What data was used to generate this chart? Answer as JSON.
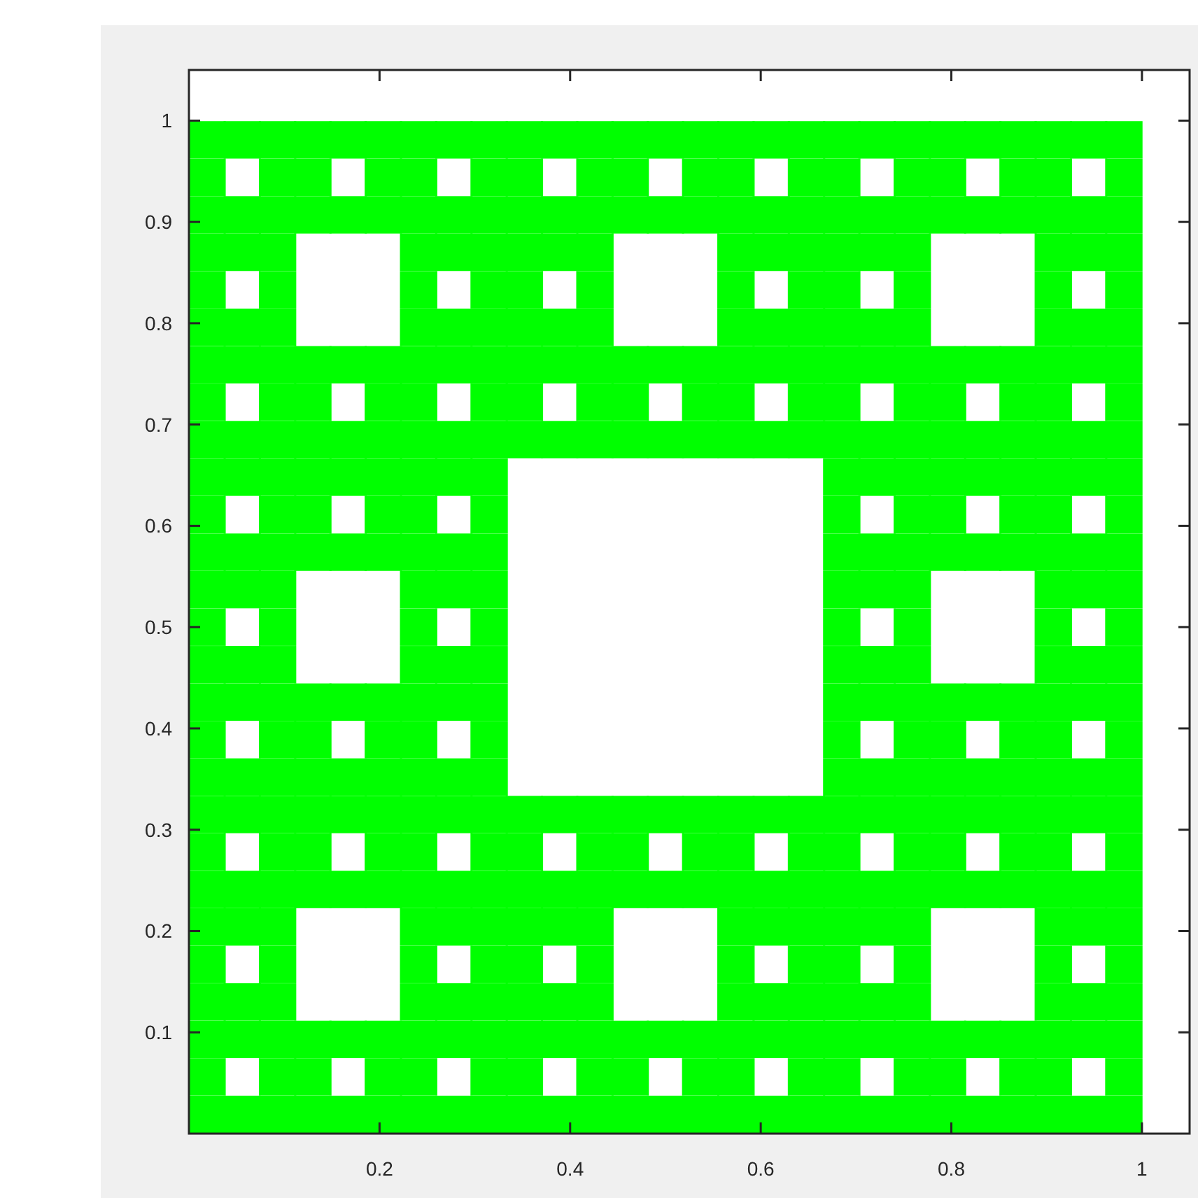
{
  "chart_data": {
    "type": "scatter",
    "marker": "square",
    "xlim": [
      0,
      1.05
    ],
    "ylim": [
      0,
      1.05
    ],
    "xticks": [
      0.2,
      0.4,
      0.6,
      0.8,
      1
    ],
    "yticks": [
      0.1,
      0.2,
      0.3,
      0.4,
      0.5,
      0.6,
      0.7,
      0.8,
      0.9,
      1
    ],
    "series": [
      {
        "color": "#00ff00",
        "x": [
          0.019,
          0.019,
          0.019,
          0.019,
          0.019,
          0.019,
          0.019,
          0.019,
          0.019,
          0.019,
          0.019,
          0.019,
          0.019,
          0.019,
          0.019,
          0.019,
          0.019,
          0.019,
          0.019,
          0.019,
          0.019,
          0.019,
          0.019,
          0.019,
          0.019,
          0.019,
          0.019
        ],
        "values": [
          0.019,
          0.056,
          0.093,
          0.13,
          0.167,
          0.204,
          0.241,
          0.278,
          0.315,
          0.352,
          0.389,
          0.426,
          0.463,
          0.5,
          0.537,
          0.574,
          0.611,
          0.648,
          0.685,
          0.722,
          0.759,
          0.796,
          0.833,
          0.87,
          0.907,
          0.944,
          0.981
        ]
      },
      {
        "color": "#00ff00",
        "x": [
          0.056,
          0.056,
          0.056,
          0.056,
          0.056,
          0.056,
          0.056,
          0.056,
          0.056,
          0.056,
          0.056,
          0.056,
          0.056,
          0.056,
          0.056,
          0.056,
          0.056,
          0.056
        ],
        "values": [
          0.019,
          0.093,
          0.13,
          0.204,
          0.241,
          0.315,
          0.352,
          0.426,
          0.463,
          0.537,
          0.574,
          0.648,
          0.685,
          0.759,
          0.796,
          0.87,
          0.907,
          0.981
        ]
      },
      {
        "color": "#00ff00",
        "x": [
          0.093,
          0.093,
          0.093,
          0.093,
          0.093,
          0.093,
          0.093,
          0.093,
          0.093,
          0.093,
          0.093,
          0.093,
          0.093,
          0.093,
          0.093,
          0.093,
          0.093,
          0.093,
          0.093,
          0.093,
          0.093,
          0.093,
          0.093,
          0.093,
          0.093,
          0.093,
          0.093
        ],
        "values": [
          0.019,
          0.056,
          0.093,
          0.13,
          0.167,
          0.204,
          0.241,
          0.278,
          0.315,
          0.352,
          0.389,
          0.426,
          0.463,
          0.5,
          0.537,
          0.574,
          0.611,
          0.648,
          0.685,
          0.722,
          0.759,
          0.796,
          0.833,
          0.87,
          0.907,
          0.944,
          0.981
        ]
      },
      {
        "color": "#00ff00",
        "x": [
          0.13,
          0.13,
          0.13,
          0.13,
          0.13,
          0.13,
          0.13,
          0.13,
          0.13,
          0.13,
          0.13,
          0.13,
          0.13,
          0.13,
          0.13,
          0.13,
          0.13,
          0.13
        ],
        "values": [
          0.019,
          0.056,
          0.093,
          0.241,
          0.278,
          0.315,
          0.352,
          0.389,
          0.426,
          0.574,
          0.611,
          0.648,
          0.685,
          0.722,
          0.759,
          0.907,
          0.944,
          0.981
        ]
      },
      {
        "color": "#00ff00",
        "x": [
          0.167,
          0.167,
          0.167,
          0.167,
          0.167,
          0.167,
          0.167,
          0.167,
          0.167,
          0.167,
          0.167,
          0.167
        ],
        "values": [
          0.019,
          0.093,
          0.241,
          0.315,
          0.352,
          0.426,
          0.574,
          0.648,
          0.685,
          0.759,
          0.907,
          0.981
        ]
      },
      {
        "color": "#00ff00",
        "x": [
          0.204,
          0.204,
          0.204,
          0.204,
          0.204,
          0.204,
          0.204,
          0.204,
          0.204,
          0.204,
          0.204,
          0.204,
          0.204,
          0.204,
          0.204,
          0.204,
          0.204,
          0.204
        ],
        "values": [
          0.019,
          0.056,
          0.093,
          0.241,
          0.278,
          0.315,
          0.352,
          0.389,
          0.426,
          0.574,
          0.611,
          0.648,
          0.685,
          0.722,
          0.759,
          0.907,
          0.944,
          0.981
        ]
      },
      {
        "color": "#00ff00",
        "x": [
          0.241,
          0.241,
          0.241,
          0.241,
          0.241,
          0.241,
          0.241,
          0.241,
          0.241,
          0.241,
          0.241,
          0.241,
          0.241,
          0.241,
          0.241,
          0.241,
          0.241,
          0.241,
          0.241,
          0.241,
          0.241,
          0.241,
          0.241,
          0.241,
          0.241,
          0.241,
          0.241
        ],
        "values": [
          0.019,
          0.056,
          0.093,
          0.13,
          0.167,
          0.204,
          0.241,
          0.278,
          0.315,
          0.352,
          0.389,
          0.426,
          0.463,
          0.5,
          0.537,
          0.574,
          0.611,
          0.648,
          0.685,
          0.722,
          0.759,
          0.796,
          0.833,
          0.87,
          0.907,
          0.944,
          0.981
        ]
      },
      {
        "color": "#00ff00",
        "x": [
          0.278,
          0.278,
          0.278,
          0.278,
          0.278,
          0.278,
          0.278,
          0.278,
          0.278,
          0.278,
          0.278,
          0.278,
          0.278,
          0.278,
          0.278,
          0.278,
          0.278,
          0.278
        ],
        "values": [
          0.019,
          0.093,
          0.13,
          0.204,
          0.241,
          0.315,
          0.352,
          0.426,
          0.463,
          0.537,
          0.574,
          0.648,
          0.685,
          0.759,
          0.796,
          0.87,
          0.907,
          0.981
        ]
      },
      {
        "color": "#00ff00",
        "x": [
          0.315,
          0.315,
          0.315,
          0.315,
          0.315,
          0.315,
          0.315,
          0.315,
          0.315,
          0.315,
          0.315,
          0.315,
          0.315,
          0.315,
          0.315,
          0.315,
          0.315,
          0.315,
          0.315,
          0.315,
          0.315,
          0.315,
          0.315,
          0.315,
          0.315,
          0.315,
          0.315
        ],
        "values": [
          0.019,
          0.056,
          0.093,
          0.13,
          0.167,
          0.204,
          0.241,
          0.278,
          0.315,
          0.352,
          0.389,
          0.426,
          0.463,
          0.5,
          0.537,
          0.574,
          0.611,
          0.648,
          0.685,
          0.722,
          0.759,
          0.796,
          0.833,
          0.87,
          0.907,
          0.944,
          0.981
        ]
      },
      {
        "color": "#00ff00",
        "x": [
          0.352,
          0.352,
          0.352,
          0.352,
          0.352,
          0.352,
          0.352,
          0.352,
          0.352,
          0.352,
          0.352,
          0.352,
          0.352,
          0.352,
          0.352,
          0.352,
          0.352,
          0.352
        ],
        "values": [
          0.019,
          0.056,
          0.093,
          0.13,
          0.167,
          0.204,
          0.241,
          0.278,
          0.315,
          0.685,
          0.722,
          0.759,
          0.796,
          0.833,
          0.87,
          0.907,
          0.944,
          0.981
        ]
      },
      {
        "color": "#00ff00",
        "x": [
          0.389,
          0.389,
          0.389,
          0.389,
          0.389,
          0.389,
          0.389,
          0.389,
          0.389,
          0.389,
          0.389,
          0.389
        ],
        "values": [
          0.019,
          0.093,
          0.13,
          0.204,
          0.241,
          0.315,
          0.685,
          0.759,
          0.796,
          0.87,
          0.907,
          0.981
        ]
      },
      {
        "color": "#00ff00",
        "x": [
          0.426,
          0.426,
          0.426,
          0.426,
          0.426,
          0.426,
          0.426,
          0.426,
          0.426,
          0.426,
          0.426,
          0.426,
          0.426,
          0.426,
          0.426,
          0.426,
          0.426,
          0.426
        ],
        "values": [
          0.019,
          0.056,
          0.093,
          0.13,
          0.167,
          0.204,
          0.241,
          0.278,
          0.315,
          0.685,
          0.722,
          0.759,
          0.796,
          0.833,
          0.87,
          0.907,
          0.944,
          0.981
        ]
      },
      {
        "color": "#00ff00",
        "x": [
          0.463,
          0.463,
          0.463,
          0.463,
          0.463,
          0.463,
          0.463,
          0.463,
          0.463,
          0.463,
          0.463,
          0.463
        ],
        "values": [
          0.019,
          0.056,
          0.093,
          0.241,
          0.278,
          0.315,
          0.685,
          0.722,
          0.759,
          0.907,
          0.944,
          0.981
        ]
      },
      {
        "color": "#00ff00",
        "x": [
          0.5,
          0.5,
          0.5,
          0.5,
          0.5,
          0.5,
          0.5,
          0.5
        ],
        "values": [
          0.019,
          0.093,
          0.241,
          0.315,
          0.685,
          0.759,
          0.907,
          0.981
        ]
      },
      {
        "color": "#00ff00",
        "x": [
          0.537,
          0.537,
          0.537,
          0.537,
          0.537,
          0.537,
          0.537,
          0.537,
          0.537,
          0.537,
          0.537,
          0.537
        ],
        "values": [
          0.019,
          0.056,
          0.093,
          0.241,
          0.278,
          0.315,
          0.685,
          0.722,
          0.759,
          0.907,
          0.944,
          0.981
        ]
      },
      {
        "color": "#00ff00",
        "x": [
          0.574,
          0.574,
          0.574,
          0.574,
          0.574,
          0.574,
          0.574,
          0.574,
          0.574,
          0.574,
          0.574,
          0.574,
          0.574,
          0.574,
          0.574,
          0.574,
          0.574,
          0.574
        ],
        "values": [
          0.019,
          0.056,
          0.093,
          0.13,
          0.167,
          0.204,
          0.241,
          0.278,
          0.315,
          0.685,
          0.722,
          0.759,
          0.796,
          0.833,
          0.87,
          0.907,
          0.944,
          0.981
        ]
      },
      {
        "color": "#00ff00",
        "x": [
          0.611,
          0.611,
          0.611,
          0.611,
          0.611,
          0.611,
          0.611,
          0.611,
          0.611,
          0.611,
          0.611,
          0.611
        ],
        "values": [
          0.019,
          0.093,
          0.13,
          0.204,
          0.241,
          0.315,
          0.685,
          0.759,
          0.796,
          0.87,
          0.907,
          0.981
        ]
      },
      {
        "color": "#00ff00",
        "x": [
          0.648,
          0.648,
          0.648,
          0.648,
          0.648,
          0.648,
          0.648,
          0.648,
          0.648,
          0.648,
          0.648,
          0.648,
          0.648,
          0.648,
          0.648,
          0.648,
          0.648,
          0.648
        ],
        "values": [
          0.019,
          0.056,
          0.093,
          0.13,
          0.167,
          0.204,
          0.241,
          0.278,
          0.315,
          0.685,
          0.722,
          0.759,
          0.796,
          0.833,
          0.87,
          0.907,
          0.944,
          0.981
        ]
      },
      {
        "color": "#00ff00",
        "x": [
          0.685,
          0.685,
          0.685,
          0.685,
          0.685,
          0.685,
          0.685,
          0.685,
          0.685,
          0.685,
          0.685,
          0.685,
          0.685,
          0.685,
          0.685,
          0.685,
          0.685,
          0.685,
          0.685,
          0.685,
          0.685,
          0.685,
          0.685,
          0.685,
          0.685,
          0.685,
          0.685
        ],
        "values": [
          0.019,
          0.056,
          0.093,
          0.13,
          0.167,
          0.204,
          0.241,
          0.278,
          0.315,
          0.352,
          0.389,
          0.426,
          0.463,
          0.5,
          0.537,
          0.574,
          0.611,
          0.648,
          0.685,
          0.722,
          0.759,
          0.796,
          0.833,
          0.87,
          0.907,
          0.944,
          0.981
        ]
      },
      {
        "color": "#00ff00",
        "x": [
          0.722,
          0.722,
          0.722,
          0.722,
          0.722,
          0.722,
          0.722,
          0.722,
          0.722,
          0.722,
          0.722,
          0.722,
          0.722,
          0.722,
          0.722,
          0.722,
          0.722,
          0.722
        ],
        "values": [
          0.019,
          0.093,
          0.13,
          0.204,
          0.241,
          0.315,
          0.352,
          0.426,
          0.463,
          0.537,
          0.574,
          0.648,
          0.685,
          0.759,
          0.796,
          0.87,
          0.907,
          0.981
        ]
      },
      {
        "color": "#00ff00",
        "x": [
          0.759,
          0.759,
          0.759,
          0.759,
          0.759,
          0.759,
          0.759,
          0.759,
          0.759,
          0.759,
          0.759,
          0.759,
          0.759,
          0.759,
          0.759,
          0.759,
          0.759,
          0.759,
          0.759,
          0.759,
          0.759,
          0.759,
          0.759,
          0.759,
          0.759,
          0.759,
          0.759
        ],
        "values": [
          0.019,
          0.056,
          0.093,
          0.13,
          0.167,
          0.204,
          0.241,
          0.278,
          0.315,
          0.352,
          0.389,
          0.426,
          0.463,
          0.5,
          0.537,
          0.574,
          0.611,
          0.648,
          0.685,
          0.722,
          0.759,
          0.796,
          0.833,
          0.87,
          0.907,
          0.944,
          0.981
        ]
      },
      {
        "color": "#00ff00",
        "x": [
          0.796,
          0.796,
          0.796,
          0.796,
          0.796,
          0.796,
          0.796,
          0.796,
          0.796,
          0.796,
          0.796,
          0.796,
          0.796,
          0.796,
          0.796,
          0.796,
          0.796,
          0.796
        ],
        "values": [
          0.019,
          0.056,
          0.093,
          0.241,
          0.278,
          0.315,
          0.352,
          0.389,
          0.426,
          0.574,
          0.611,
          0.648,
          0.685,
          0.722,
          0.759,
          0.907,
          0.944,
          0.981
        ]
      },
      {
        "color": "#00ff00",
        "x": [
          0.833,
          0.833,
          0.833,
          0.833,
          0.833,
          0.833,
          0.833,
          0.833,
          0.833,
          0.833,
          0.833,
          0.833
        ],
        "values": [
          0.019,
          0.093,
          0.241,
          0.315,
          0.352,
          0.426,
          0.574,
          0.648,
          0.685,
          0.759,
          0.907,
          0.981
        ]
      },
      {
        "color": "#00ff00",
        "x": [
          0.87,
          0.87,
          0.87,
          0.87,
          0.87,
          0.87,
          0.87,
          0.87,
          0.87,
          0.87,
          0.87,
          0.87,
          0.87,
          0.87,
          0.87,
          0.87,
          0.87,
          0.87
        ],
        "values": [
          0.019,
          0.056,
          0.093,
          0.241,
          0.278,
          0.315,
          0.352,
          0.389,
          0.426,
          0.574,
          0.611,
          0.648,
          0.685,
          0.722,
          0.759,
          0.907,
          0.944,
          0.981
        ]
      },
      {
        "color": "#00ff00",
        "x": [
          0.907,
          0.907,
          0.907,
          0.907,
          0.907,
          0.907,
          0.907,
          0.907,
          0.907,
          0.907,
          0.907,
          0.907,
          0.907,
          0.907,
          0.907,
          0.907,
          0.907,
          0.907,
          0.907,
          0.907,
          0.907,
          0.907,
          0.907,
          0.907,
          0.907,
          0.907,
          0.907
        ],
        "values": [
          0.019,
          0.056,
          0.093,
          0.13,
          0.167,
          0.204,
          0.241,
          0.278,
          0.315,
          0.352,
          0.389,
          0.426,
          0.463,
          0.5,
          0.537,
          0.574,
          0.611,
          0.648,
          0.685,
          0.722,
          0.759,
          0.796,
          0.833,
          0.87,
          0.907,
          0.944,
          0.981
        ]
      },
      {
        "color": "#00ff00",
        "x": [
          0.944,
          0.944,
          0.944,
          0.944,
          0.944,
          0.944,
          0.944,
          0.944,
          0.944,
          0.944,
          0.944,
          0.944,
          0.944,
          0.944,
          0.944,
          0.944,
          0.944,
          0.944
        ],
        "values": [
          0.019,
          0.093,
          0.13,
          0.204,
          0.241,
          0.315,
          0.352,
          0.426,
          0.463,
          0.537,
          0.574,
          0.648,
          0.685,
          0.759,
          0.796,
          0.87,
          0.907,
          0.981
        ]
      },
      {
        "color": "#00ff00",
        "x": [
          0.981,
          0.981,
          0.981,
          0.981,
          0.981,
          0.981,
          0.981,
          0.981,
          0.981,
          0.981,
          0.981,
          0.981,
          0.981,
          0.981,
          0.981,
          0.981,
          0.981,
          0.981,
          0.981,
          0.981,
          0.981,
          0.981,
          0.981,
          0.981,
          0.981,
          0.981,
          0.981
        ],
        "values": [
          0.019,
          0.056,
          0.093,
          0.13,
          0.167,
          0.204,
          0.241,
          0.278,
          0.315,
          0.352,
          0.389,
          0.426,
          0.463,
          0.5,
          0.537,
          0.574,
          0.611,
          0.648,
          0.685,
          0.722,
          0.759,
          0.796,
          0.833,
          0.87,
          0.907,
          0.944,
          0.981
        ]
      }
    ]
  }
}
